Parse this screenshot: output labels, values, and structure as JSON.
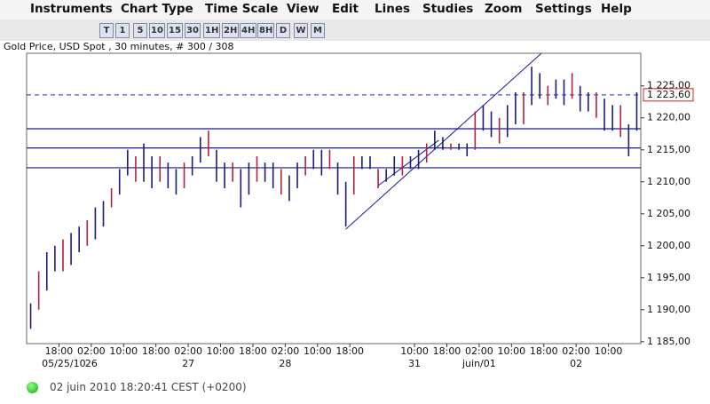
{
  "menu": [
    "Instruments",
    "Chart Type",
    "Time Scale",
    "View",
    "Edit",
    "Lines",
    "Studies",
    "Zoom",
    "Settings",
    "Help"
  ],
  "toolbar": [
    "T",
    "1",
    "5",
    "10",
    "15",
    "30",
    "1H",
    "2H",
    "4H",
    "8H",
    "D",
    "W",
    "M"
  ],
  "chart_data": {
    "type": "ohlc",
    "title": "Gold Price, USD Spot , 30 minutes, # 300 / 308",
    "color": "#1a1a80",
    "x": [
      0.5,
      1.5,
      2.5,
      3.5,
      4.5,
      5.5,
      6.5,
      7.5,
      8.5,
      9.5,
      10.5,
      11.5,
      12.5,
      13.5,
      14.5,
      15.5,
      16.5,
      17.5,
      18.5,
      19.5,
      20.5,
      21.5,
      22.5,
      23.5,
      24.5,
      25.5,
      26.5,
      27.5,
      28.5,
      29.5,
      30.5,
      31.5,
      32.5,
      33.5,
      34.5,
      35.5,
      36.5,
      37.5,
      38.5,
      39.5,
      40.5,
      41.5,
      42.5,
      43.5,
      44.5,
      45.5,
      46.5,
      47.5,
      48.5,
      49.5,
      50.5,
      51.5,
      52.5,
      53.5,
      54.5,
      55.5,
      56.5,
      57.5,
      58.5,
      59.5,
      60.5,
      61.5,
      62.5,
      63.5,
      64.5,
      65.5,
      66.5,
      67.5,
      68.5,
      69.5,
      70.5,
      71.5,
      72.5,
      73.5,
      74.5,
      75.5
    ],
    "high": [
      1191,
      1196,
      1199,
      1200,
      1201,
      1202,
      1203,
      1204,
      1206,
      1207,
      1209,
      1212,
      1215,
      1214,
      1216,
      1214,
      1214,
      1213,
      1212,
      1213,
      1214,
      1217,
      1218,
      1215,
      1213,
      1213,
      1212,
      1213,
      1214,
      1213,
      1213,
      1212,
      1211,
      1213,
      1214,
      1215,
      1215,
      1215,
      1213,
      1210,
      1214,
      1214,
      1214,
      1212,
      1212,
      1214,
      1214,
      1214,
      1215,
      1216,
      1218,
      1217,
      1216,
      1216,
      1216,
      1221,
      1222,
      1221,
      1220,
      1222,
      1224,
      1224,
      1228,
      1227,
      1225,
      1226,
      1226,
      1227,
      1225,
      1224,
      1224,
      1223,
      1222,
      1222,
      1219,
      1224
    ],
    "low": [
      1187,
      1190,
      1193,
      1196,
      1196,
      1197,
      1199,
      1200,
      1201,
      1203,
      1206,
      1208,
      1211,
      1210,
      1210,
      1209,
      1210,
      1209,
      1208,
      1209,
      1211,
      1213,
      1214,
      1210,
      1209,
      1210,
      1206,
      1208,
      1210,
      1210,
      1209,
      1208,
      1207,
      1209,
      1211,
      1212,
      1211,
      1212,
      1208,
      1203,
      1208,
      1212,
      1212,
      1209,
      1210,
      1211,
      1211,
      1212,
      1212,
      1213,
      1215,
      1215,
      1215,
      1215,
      1214,
      1215,
      1218,
      1217,
      1216,
      1217,
      1219,
      1219,
      1222,
      1223,
      1222,
      1223,
      1222,
      1223,
      1221,
      1221,
      1220,
      1218,
      1218,
      1217,
      1214,
      1218
    ],
    "hlines": [
      1218.3,
      1215.3,
      1212.2
    ],
    "trend_lines": [
      {
        "x": [
          39.5,
          63.7
        ],
        "y": [
          1202.6,
          1230.1
        ]
      },
      {
        "x": [
          43.5,
          51
        ],
        "y": [
          1209.4,
          1216.5
        ]
      }
    ],
    "current": {
      "value": 1223.6,
      "label": "1 223,60"
    },
    "xlim": [
      0,
      76
    ],
    "ylim": [
      1184.7,
      1230.1
    ],
    "yticks": [
      {
        "value": 1185,
        "label": "1 185,00"
      },
      {
        "value": 1190,
        "label": "1 190,00"
      },
      {
        "value": 1195,
        "label": "1 195,00"
      },
      {
        "value": 1200,
        "label": "1 200,00"
      },
      {
        "value": 1205,
        "label": "1 205,00"
      },
      {
        "value": 1210,
        "label": "1 210,00"
      },
      {
        "value": 1215,
        "label": "1 215,00"
      },
      {
        "value": 1220,
        "label": "1 220,00"
      },
      {
        "value": 1225,
        "label": "1 225,00"
      }
    ],
    "xticks": [
      {
        "value": 4,
        "label": "18:00"
      },
      {
        "value": 8,
        "label": "02:00"
      },
      {
        "value": 12,
        "label": "10:00"
      },
      {
        "value": 16,
        "label": "18:00"
      },
      {
        "value": 20,
        "label": "02:00"
      },
      {
        "value": 24,
        "label": "10:00"
      },
      {
        "value": 28,
        "label": "18:00"
      },
      {
        "value": 32,
        "label": "02:00"
      },
      {
        "value": 36,
        "label": "10:00"
      },
      {
        "value": 40,
        "label": "18:00"
      },
      {
        "value": 48,
        "label": "10:00"
      },
      {
        "value": 52,
        "label": "18:00"
      },
      {
        "value": 56,
        "label": "02:00"
      },
      {
        "value": 60,
        "label": "10:00"
      },
      {
        "value": 64,
        "label": "18:00"
      },
      {
        "value": 68,
        "label": "02:00"
      },
      {
        "value": 72,
        "label": "10:00"
      }
    ],
    "date_ticks": [
      {
        "value": 4.6,
        "label": "05/25/10"
      },
      {
        "value": 8,
        "label": "26"
      },
      {
        "value": 20,
        "label": "27"
      },
      {
        "value": 32,
        "label": "28"
      },
      {
        "value": 48,
        "label": "31"
      },
      {
        "value": 56,
        "label": "juin/01"
      },
      {
        "value": 68,
        "label": "02"
      }
    ]
  },
  "status": "02 juin 2010 18:20:41  CEST (+0200)"
}
